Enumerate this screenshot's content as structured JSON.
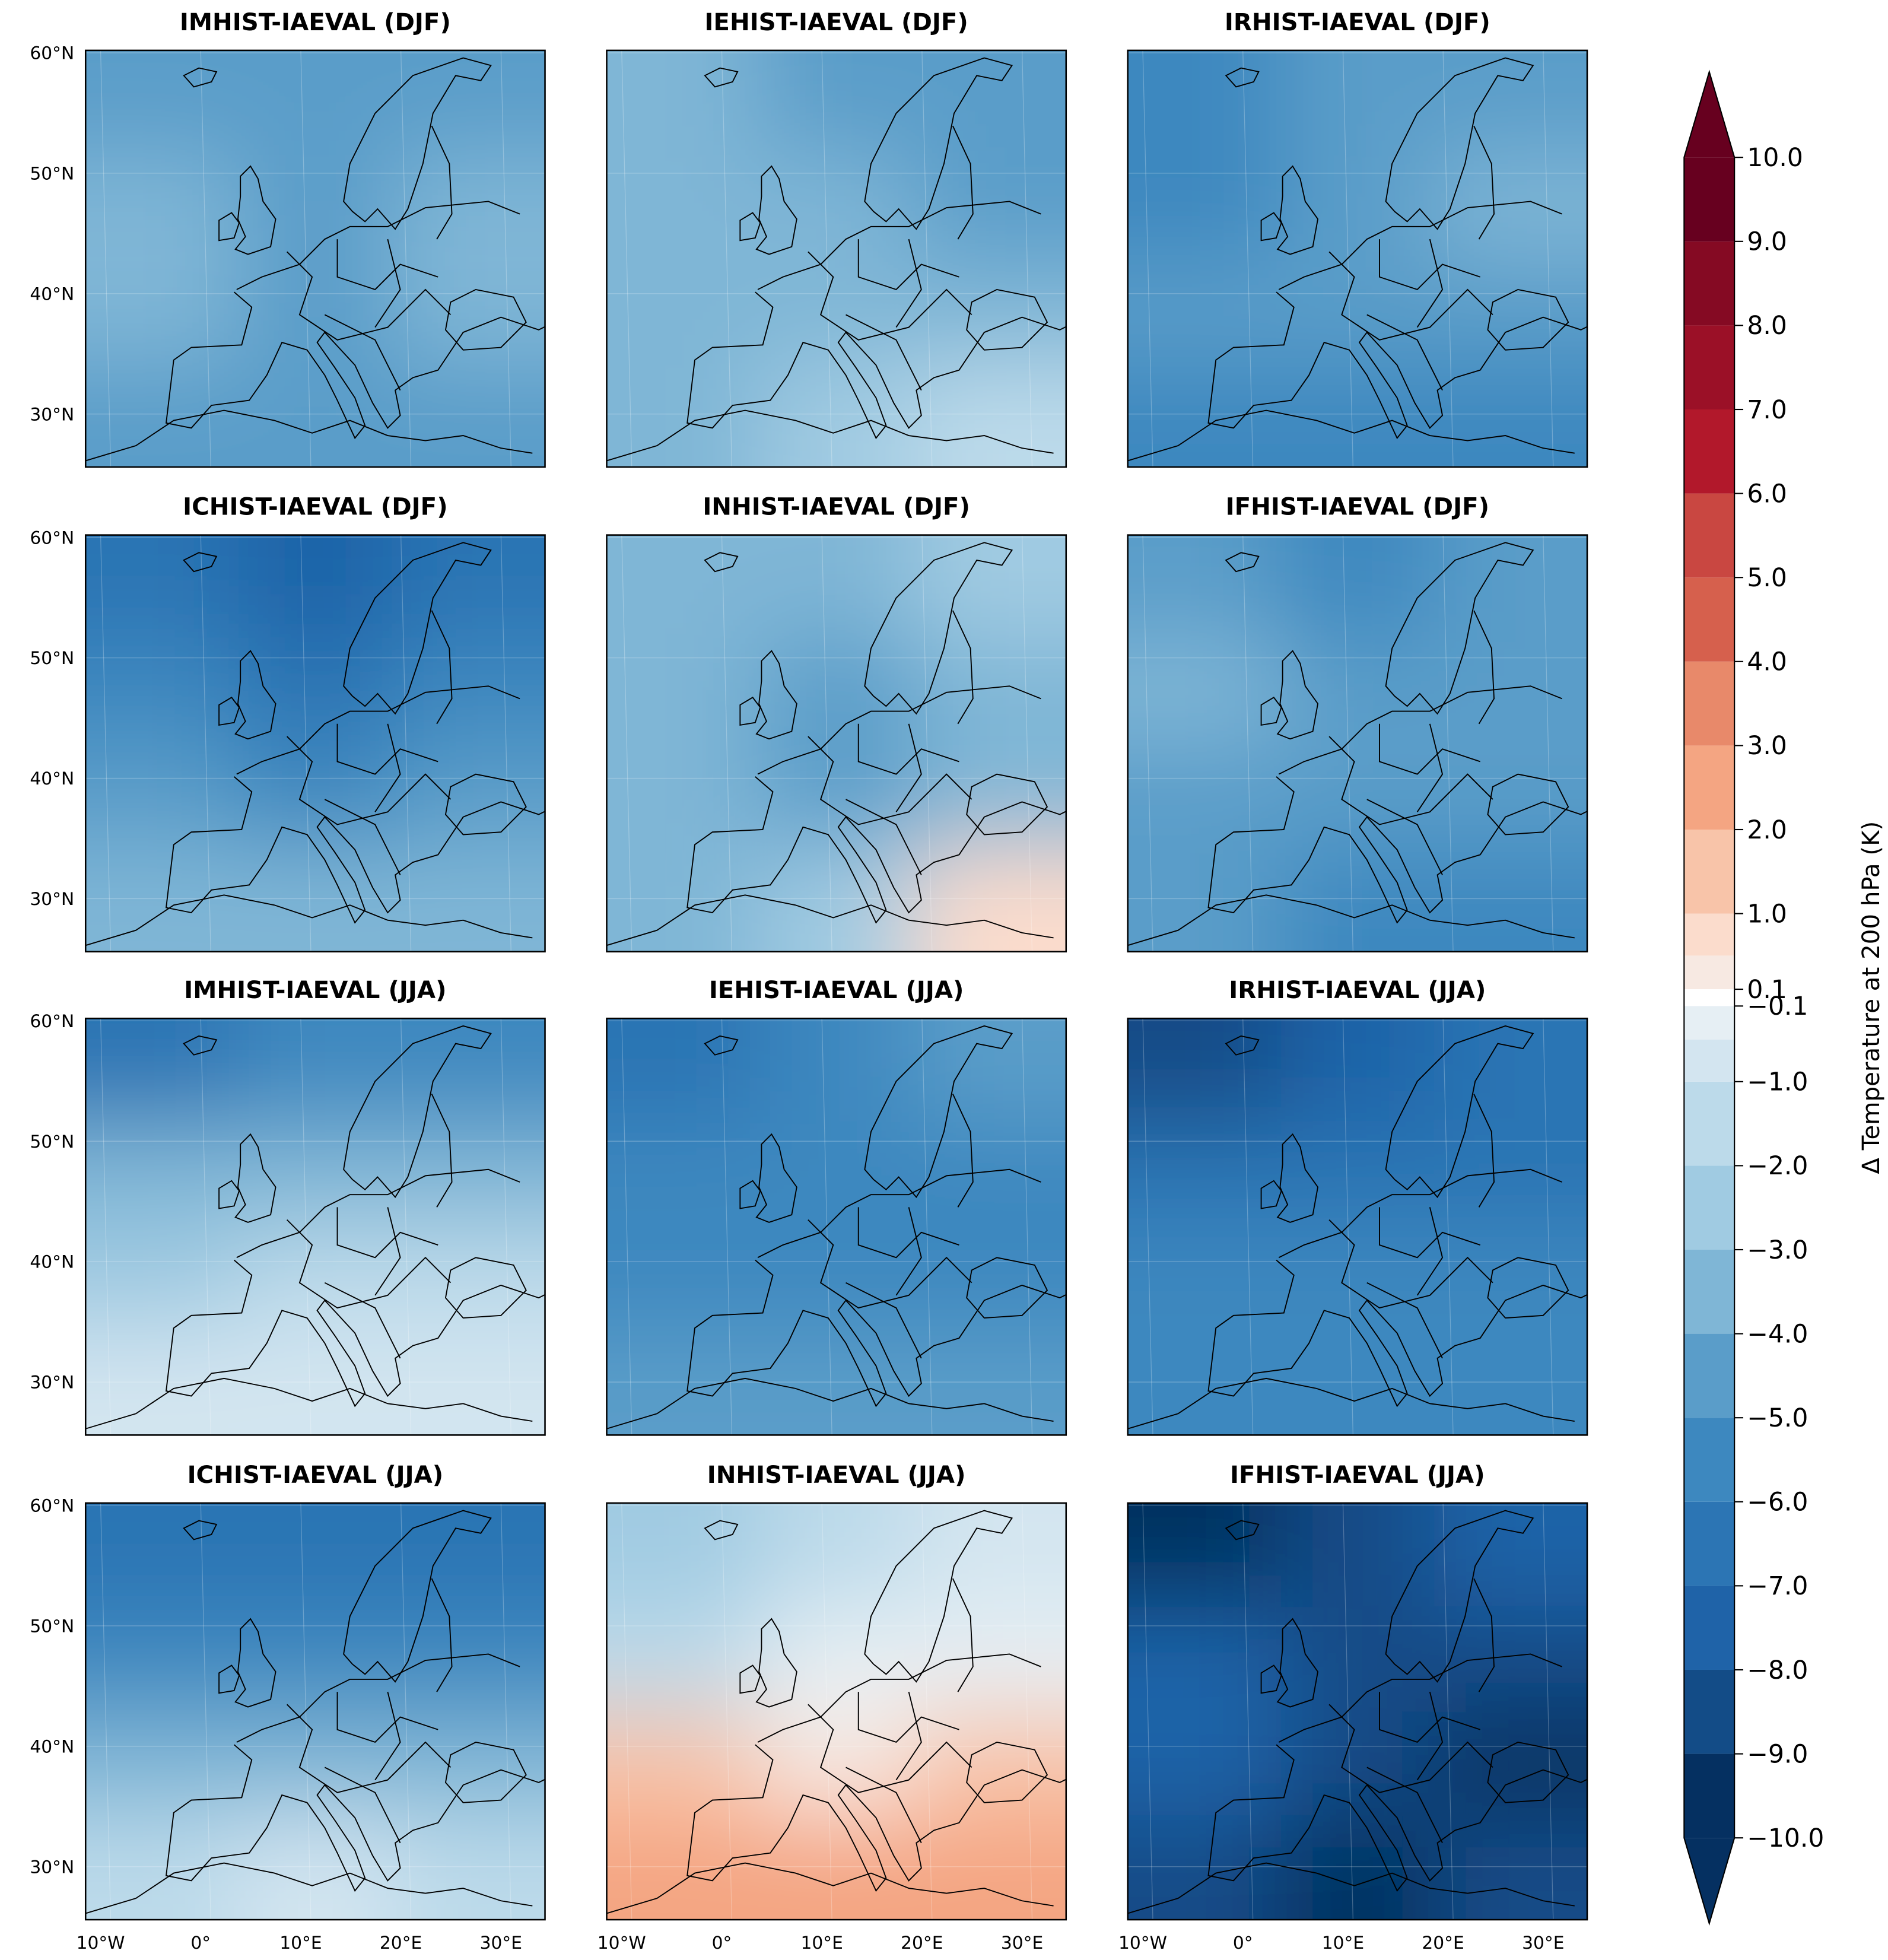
{
  "chart_data": {
    "type": "contourf",
    "xlim": [
      -11.5,
      34.4
    ],
    "ylim": [
      25.6,
      60.2
    ],
    "xticks": [
      {
        "value": -10,
        "label": "10°W"
      },
      {
        "value": 0,
        "label": "0°"
      },
      {
        "value": 10,
        "label": "10°E"
      },
      {
        "value": 20,
        "label": "20°E"
      },
      {
        "value": 30,
        "label": "30°E"
      }
    ],
    "yticks": [
      {
        "value": 60,
        "label": "60°N"
      },
      {
        "value": 50,
        "label": "50°N"
      },
      {
        "value": 40,
        "label": "40°N"
      },
      {
        "value": 30,
        "label": "30°N"
      }
    ],
    "panels": [
      {
        "title": "IMHIST-IAEVAL (DJF)",
        "field": [
          [
            -4.2,
            -4.5,
            -4.2
          ],
          [
            -3.5,
            -4.5,
            -3.5
          ],
          [
            -3.5,
            -4.5,
            -3.5
          ],
          [
            -4.2,
            -4.6,
            -4.2
          ]
        ]
      },
      {
        "title": "IEHIST-IAEVAL (DJF)",
        "field": [
          [
            -3.5,
            -4.3,
            -4.6
          ],
          [
            -3.3,
            -3.6,
            -4.2
          ],
          [
            -3.3,
            -3.7,
            -3.3
          ],
          [
            -3.6,
            -2.5,
            -1.5
          ]
        ]
      },
      {
        "title": "IRHIST-IAEVAL (DJF)",
        "field": [
          [
            -5.5,
            -4.5,
            -4.3
          ],
          [
            -5.3,
            -4.6,
            -3.8
          ],
          [
            -4.7,
            -4.5,
            -4.7
          ],
          [
            -5.2,
            -5.4,
            -5.3
          ]
        ]
      },
      {
        "title": "ICHIST-IAEVAL (DJF)",
        "field": [
          [
            -6.3,
            -7.3,
            -6.5
          ],
          [
            -5.3,
            -6.2,
            -5.5
          ],
          [
            -4.5,
            -5.3,
            -4.5
          ],
          [
            -3.5,
            -3.7,
            -3.5
          ]
        ]
      },
      {
        "title": "INHIST-IAEVAL (DJF)",
        "field": [
          [
            -3.4,
            -3.5,
            -2.8
          ],
          [
            -3.6,
            -4.3,
            -3.2
          ],
          [
            -3.5,
            -4.3,
            -3.7
          ],
          [
            -3.3,
            -2.8,
            0.8
          ]
        ]
      },
      {
        "title": "IFHIST-IAEVAL (DJF)",
        "field": [
          [
            -4.5,
            -5.3,
            -4.2
          ],
          [
            -3.3,
            -4.2,
            -4.3
          ],
          [
            -4.3,
            -4.4,
            -4.8
          ],
          [
            -4.6,
            -5.2,
            -5.3
          ]
        ]
      },
      {
        "title": "IMHIST-IAEVAL (JJA)",
        "field": [
          [
            -6.2,
            -5.5,
            -5.2
          ],
          [
            -3.5,
            -3.5,
            -3.4
          ],
          [
            -2.5,
            -1.8,
            -1.6
          ],
          [
            -0.8,
            -0.6,
            -0.8
          ]
        ]
      },
      {
        "title": "IEHIST-IAEVAL (JJA)",
        "field": [
          [
            -6.2,
            -5.5,
            -4.5
          ],
          [
            -5.3,
            -5.6,
            -5.3
          ],
          [
            -5.2,
            -5.5,
            -5.3
          ],
          [
            -4.6,
            -4.7,
            -4.5
          ]
        ]
      },
      {
        "title": "IRHIST-IAEVAL (JJA)",
        "field": [
          [
            -8.3,
            -7.5,
            -6.5
          ],
          [
            -6.3,
            -6.5,
            -6.2
          ],
          [
            -5.5,
            -5.8,
            -5.8
          ],
          [
            -5.2,
            -5.5,
            -5.3
          ]
        ]
      },
      {
        "title": "ICHIST-IAEVAL (JJA)",
        "field": [
          [
            -6.5,
            -6.5,
            -6.2
          ],
          [
            -5.2,
            -5.3,
            -5.2
          ],
          [
            -3.5,
            -3.8,
            -3.3
          ],
          [
            -1.5,
            -0.8,
            -1.2
          ]
        ]
      },
      {
        "title": "INHIST-IAEVAL (JJA)",
        "field": [
          [
            -2.3,
            -1.6,
            -0.9
          ],
          [
            -1.2,
            -0.5,
            -0.5
          ],
          [
            1.5,
            0.3,
            1.5
          ],
          [
            2.2,
            2.6,
            2.1
          ]
        ]
      },
      {
        "title": "IFHIST-IAEVAL (JJA)",
        "field": [
          [
            -9.2,
            -8.3,
            -7.5
          ],
          [
            -7.3,
            -8.1,
            -8.3
          ],
          [
            -7.5,
            -8.5,
            -9.2
          ],
          [
            -8.5,
            -9.1,
            -8.9
          ]
        ]
      }
    ],
    "colorbar": {
      "label": "Δ Temperature at 200 hPa (K)",
      "lim": [
        -10,
        10
      ],
      "levels": [
        -10,
        -9,
        -8,
        -7,
        -6,
        -5,
        -4,
        -3,
        -2,
        -1,
        -0.5,
        -0.1,
        0.1,
        0.5,
        1,
        2,
        3,
        4,
        5,
        6,
        7,
        8,
        9,
        10
      ],
      "colors": [
        "#053061",
        "#134c87",
        "#1f63a8",
        "#2c75b4",
        "#3d88bf",
        "#5a9dc9",
        "#7fb6d6",
        "#a0cbe2",
        "#bcdaea",
        "#d3e5f0",
        "#e6eff4",
        "#ffffff",
        "#f7e9e2",
        "#fbdccc",
        "#f8c4a9",
        "#f4a582",
        "#e8896a",
        "#d6604d",
        "#c94741",
        "#b2182b",
        "#9b1027",
        "#850a23",
        "#67001f"
      ],
      "under_color": "#053061",
      "over_color": "#67001f",
      "ticks": [
        {
          "value": 10,
          "label": "10.0"
        },
        {
          "value": 9,
          "label": "9.0"
        },
        {
          "value": 8,
          "label": "8.0"
        },
        {
          "value": 7,
          "label": "7.0"
        },
        {
          "value": 6,
          "label": "6.0"
        },
        {
          "value": 5,
          "label": "5.0"
        },
        {
          "value": 4,
          "label": "4.0"
        },
        {
          "value": 3,
          "label": "3.0"
        },
        {
          "value": 2,
          "label": "2.0"
        },
        {
          "value": 1,
          "label": "1.0"
        },
        0.1,
        {
          "value": -0.1,
          "label": "−0.1"
        },
        {
          "value": -1,
          "label": "−1.0"
        },
        {
          "value": -2,
          "label": "−2.0"
        },
        {
          "value": -3,
          "label": "−3.0"
        },
        {
          "value": -4,
          "label": "−4.0"
        },
        {
          "value": -5,
          "label": "−5.0"
        },
        {
          "value": -6,
          "label": "−6.0"
        },
        {
          "value": -7,
          "label": "−7.0"
        },
        {
          "value": -8,
          "label": "−8.0"
        },
        {
          "value": -9,
          "label": "−9.0"
        },
        {
          "value": -10,
          "label": "−10.0"
        }
      ]
    }
  }
}
